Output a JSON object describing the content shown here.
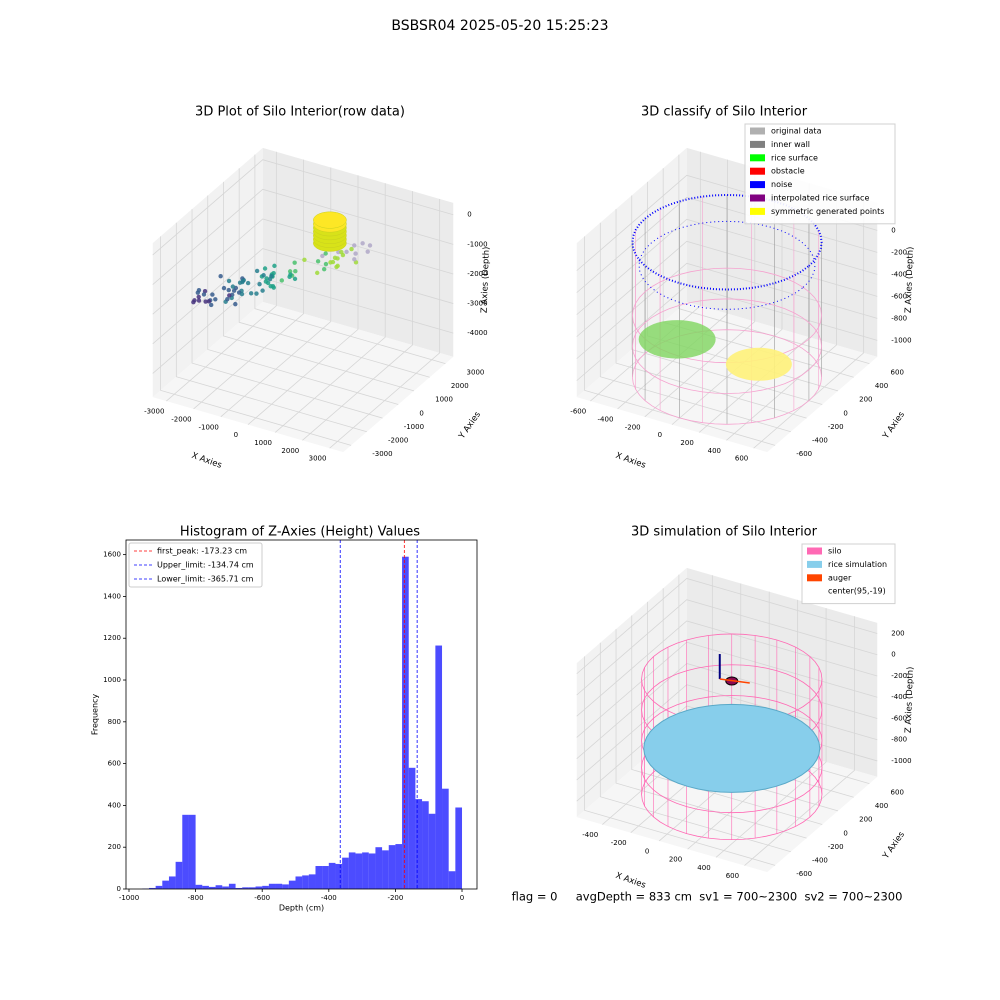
{
  "title": "BSBSR04 2025-05-20 15:25:23",
  "footer": "flag = 0     avgDepth = 833 cm  sv1 = 700~2300  sv2 = 700~2300",
  "chart_data": [
    {
      "type": "scatter3d",
      "title": "3D Plot of Silo Interior(row data)",
      "x_label": "X Axies",
      "y_label": "Y Axies",
      "z_label": "Z Axies (Depth)",
      "xlim": [
        -3500,
        3500
      ],
      "ylim": [
        -3500,
        3500
      ],
      "zlim": [
        -4800,
        400
      ],
      "xticks": [
        -3000,
        -2000,
        -1000,
        0,
        1000,
        2000,
        3000
      ],
      "yticks": [
        -3000,
        -2000,
        -1000,
        0,
        1000,
        2000,
        3000
      ],
      "zticks": [
        -4000,
        -3000,
        -2000,
        -1000,
        0
      ],
      "grid": true
    },
    {
      "type": "scatter3d",
      "title": "3D classify of Silo Interior",
      "x_label": "X Axies",
      "y_label": "Y Axies",
      "z_label": "Z Axies (Depth)",
      "xlim": [
        -700,
        700
      ],
      "ylim": [
        -700,
        700
      ],
      "zlim": [
        -1150,
        250
      ],
      "xticks": [
        -600,
        -400,
        -200,
        0,
        200,
        400,
        600
      ],
      "yticks": [
        -600,
        -400,
        -200,
        0,
        200,
        400,
        600
      ],
      "zticks": [
        -1000,
        -800,
        -600,
        -400,
        -200,
        0
      ],
      "grid": true,
      "legend": {
        "position": "upper right",
        "entries": [
          {
            "name": "original data",
            "color": "#b0b0b0"
          },
          {
            "name": "inner wall",
            "color": "#808080"
          },
          {
            "name": "rice surface",
            "color": "#00ff00"
          },
          {
            "name": "obstacle",
            "color": "#ff0000"
          },
          {
            "name": "noise",
            "color": "#0000ff"
          },
          {
            "name": "interpolated rice surface",
            "color": "#800080"
          },
          {
            "name": "symmetric generated points",
            "color": "#ffff00"
          }
        ]
      }
    },
    {
      "type": "histogram",
      "title": "Histogram of Z-Axies (Height) Values",
      "x_label": "Depth (cm)",
      "y_label": "Frequency",
      "color": "#0000ff",
      "bins": [
        -960,
        -940,
        -920,
        -900,
        -880,
        -860,
        -840,
        -820,
        -800,
        -780,
        -760,
        -740,
        -720,
        -700,
        -680,
        -660,
        -640,
        -620,
        -600,
        -580,
        -560,
        -540,
        -520,
        -500,
        -480,
        -460,
        -440,
        -420,
        -400,
        -380,
        -360,
        -340,
        -320,
        -300,
        -280,
        -260,
        -240,
        -220,
        -200,
        -180,
        -160,
        -140,
        -120,
        -100,
        -80,
        -60,
        -40,
        -20,
        0
      ],
      "counts": [
        2,
        5,
        15,
        40,
        60,
        130,
        355,
        355,
        20,
        15,
        10,
        18,
        12,
        25,
        5,
        8,
        8,
        12,
        15,
        25,
        25,
        22,
        40,
        60,
        65,
        70,
        110,
        110,
        125,
        120,
        150,
        175,
        170,
        175,
        170,
        200,
        185,
        210,
        215,
        1590,
        580,
        430,
        420,
        360,
        1165,
        480,
        85,
        390
      ],
      "xlim": [
        -1009,
        45
      ],
      "ylim": [
        0,
        1670
      ],
      "xticks": [
        -1000,
        -800,
        -600,
        -400,
        -200,
        0
      ],
      "yticks": [
        0,
        200,
        400,
        600,
        800,
        1000,
        1200,
        1400,
        1600
      ],
      "vlines": [
        {
          "name": "first_peak: -173.23 cm",
          "value": -173.23,
          "color": "#ff0000"
        },
        {
          "name": "Upper_limit: -134.74 cm",
          "value": -134.74,
          "color": "#0000ff"
        },
        {
          "name": "Lower_limit: -365.71 cm",
          "value": -365.71,
          "color": "#0000ff"
        }
      ],
      "legend": {
        "position": "upper left"
      }
    },
    {
      "type": "surface3d",
      "title": "3D simulation of Silo Interior",
      "x_label": "X Axies",
      "y_label": "Y Axies",
      "z_label": "Z Axies (Depth)",
      "xlim": [
        -580,
        760
      ],
      "ylim": [
        -700,
        700
      ],
      "zlim": [
        -1150,
        300
      ],
      "xticks": [
        -400,
        -200,
        0,
        200,
        400,
        600
      ],
      "yticks": [
        -600,
        -400,
        -200,
        0,
        200,
        400,
        600
      ],
      "zticks": [
        -1000,
        -800,
        -600,
        -400,
        -200,
        0,
        200
      ],
      "grid": true,
      "legend": {
        "position": "upper right",
        "entries": [
          {
            "name": "silo",
            "color": "#ff69b4"
          },
          {
            "name": "rice simulation",
            "color": "#87ceeb"
          },
          {
            "name": "auger",
            "color": "#ff4500"
          },
          {
            "name": "center(95,-19)",
            "color": "#ffffff"
          }
        ]
      }
    }
  ]
}
